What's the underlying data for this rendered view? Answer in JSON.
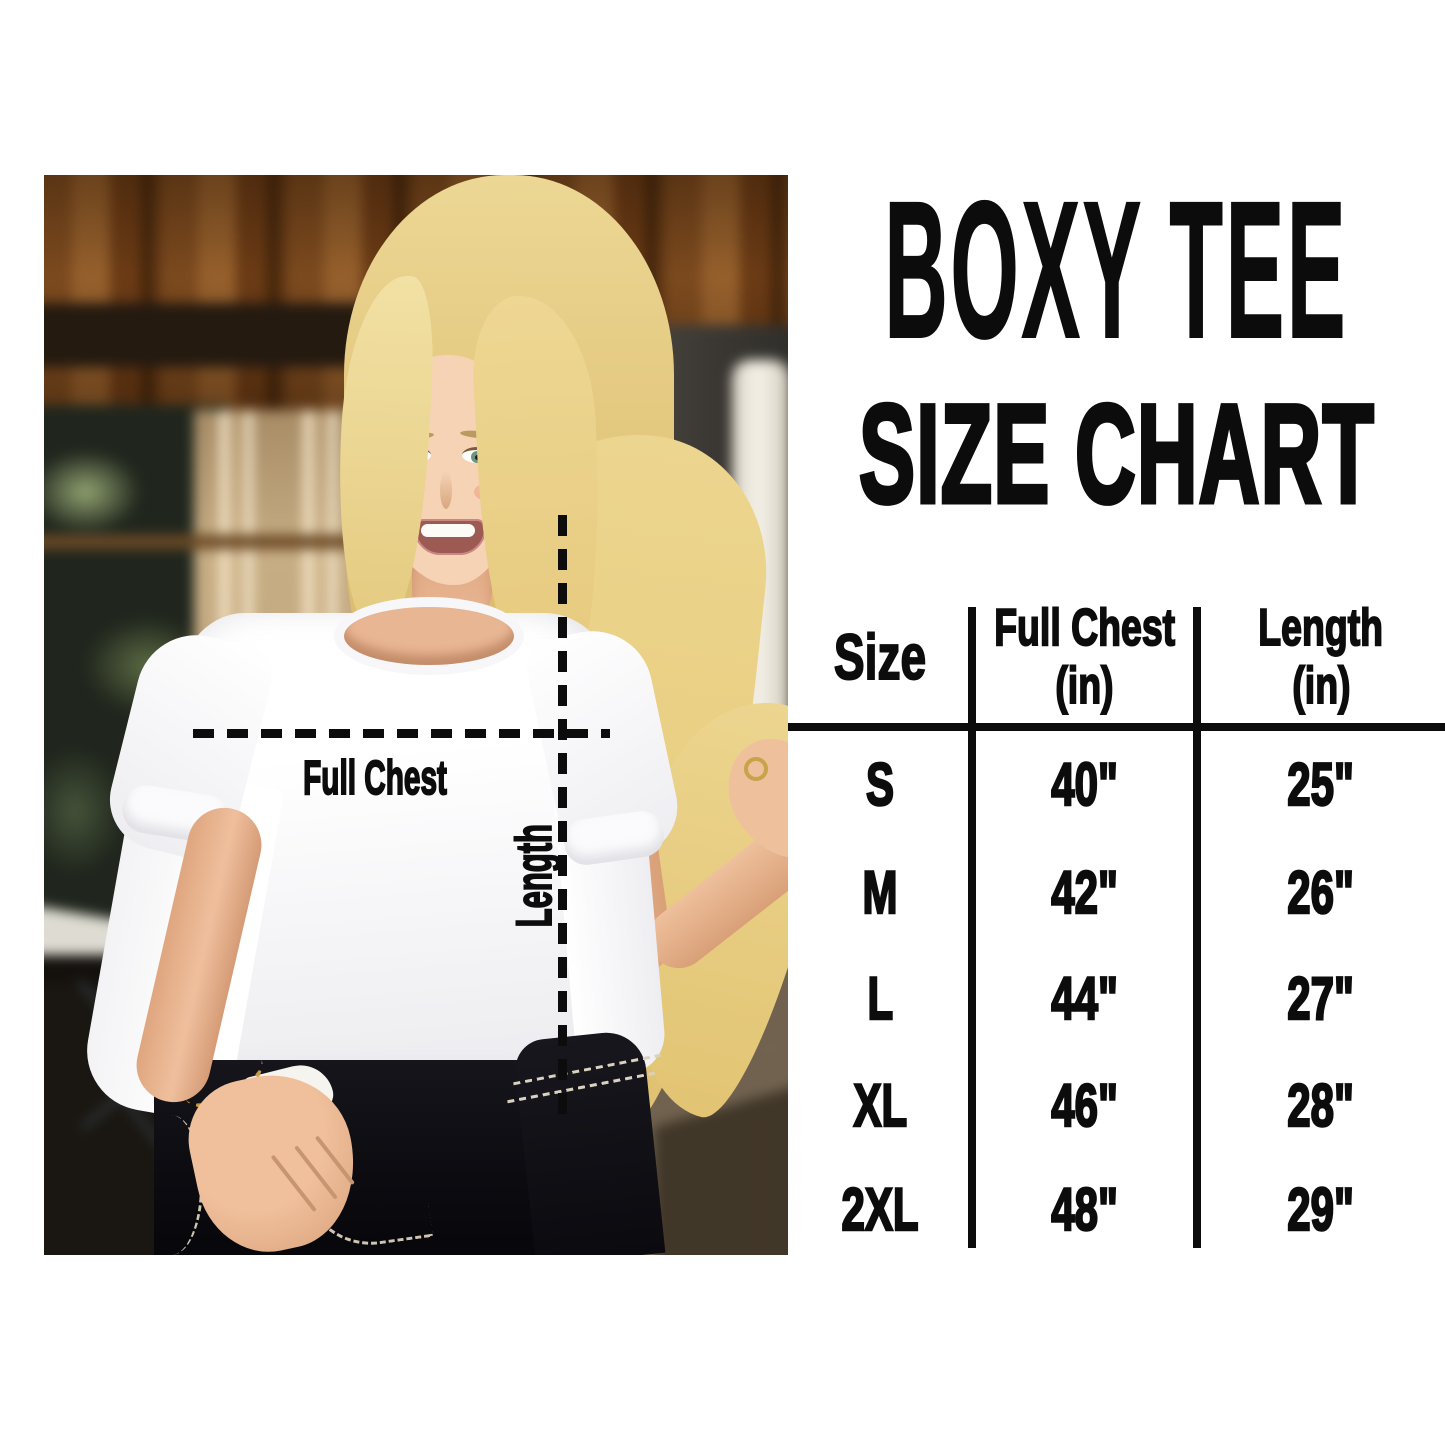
{
  "title": "BOXY TEE",
  "subtitle": "SIZE CHART",
  "annotations": {
    "chest": "Full Chest",
    "length": "Length"
  },
  "table": {
    "headers": {
      "size": "Size",
      "chest_line1": "Full Chest",
      "chest_line2": "(in)",
      "length_line1": "Length",
      "length_line2": "(in)"
    },
    "rows": [
      {
        "size": "S",
        "chest": "40\"",
        "length": "25\""
      },
      {
        "size": "M",
        "chest": "42\"",
        "length": "26\""
      },
      {
        "size": "L",
        "chest": "44\"",
        "length": "27\""
      },
      {
        "size": "XL",
        "chest": "46\"",
        "length": "28\""
      },
      {
        "size": "2XL",
        "chest": "48\"",
        "length": "29\""
      }
    ]
  },
  "colors": {
    "background": "#ffffff",
    "text": "#0c0c0c",
    "table_lines": "#0c0c0c",
    "dashed_lines": "#0c0c0c",
    "bracelet_gold": "#c79a3e"
  }
}
